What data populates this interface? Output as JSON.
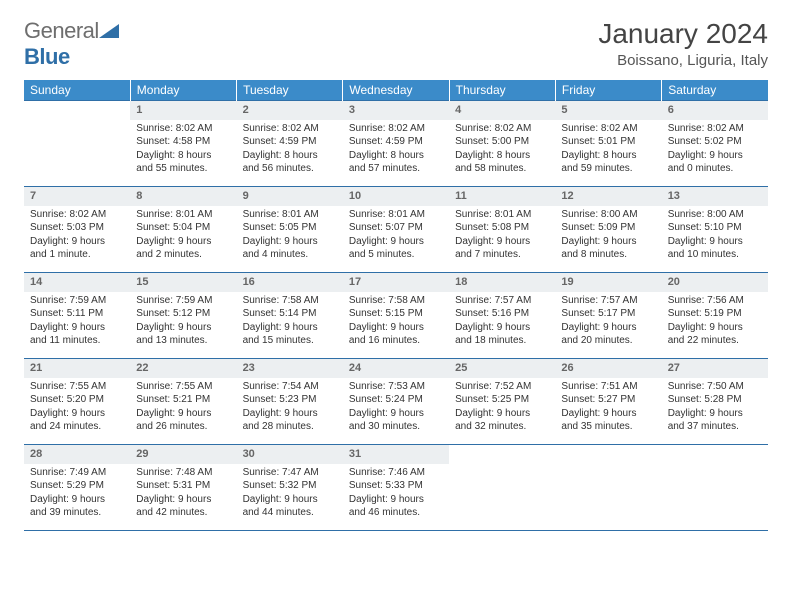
{
  "brand": {
    "word1": "General",
    "word2": "Blue"
  },
  "title": "January 2024",
  "location": "Boissano, Liguria, Italy",
  "colors": {
    "header_bg": "#3b8bc9",
    "rule": "#2f6fa7",
    "daynum_bg": "#eceff1"
  },
  "weekdays": [
    "Sunday",
    "Monday",
    "Tuesday",
    "Wednesday",
    "Thursday",
    "Friday",
    "Saturday"
  ],
  "weeks": [
    [
      null,
      {
        "n": "1",
        "sr": "Sunrise: 8:02 AM",
        "ss": "Sunset: 4:58 PM",
        "d1": "Daylight: 8 hours",
        "d2": "and 55 minutes."
      },
      {
        "n": "2",
        "sr": "Sunrise: 8:02 AM",
        "ss": "Sunset: 4:59 PM",
        "d1": "Daylight: 8 hours",
        "d2": "and 56 minutes."
      },
      {
        "n": "3",
        "sr": "Sunrise: 8:02 AM",
        "ss": "Sunset: 4:59 PM",
        "d1": "Daylight: 8 hours",
        "d2": "and 57 minutes."
      },
      {
        "n": "4",
        "sr": "Sunrise: 8:02 AM",
        "ss": "Sunset: 5:00 PM",
        "d1": "Daylight: 8 hours",
        "d2": "and 58 minutes."
      },
      {
        "n": "5",
        "sr": "Sunrise: 8:02 AM",
        "ss": "Sunset: 5:01 PM",
        "d1": "Daylight: 8 hours",
        "d2": "and 59 minutes."
      },
      {
        "n": "6",
        "sr": "Sunrise: 8:02 AM",
        "ss": "Sunset: 5:02 PM",
        "d1": "Daylight: 9 hours",
        "d2": "and 0 minutes."
      }
    ],
    [
      {
        "n": "7",
        "sr": "Sunrise: 8:02 AM",
        "ss": "Sunset: 5:03 PM",
        "d1": "Daylight: 9 hours",
        "d2": "and 1 minute."
      },
      {
        "n": "8",
        "sr": "Sunrise: 8:01 AM",
        "ss": "Sunset: 5:04 PM",
        "d1": "Daylight: 9 hours",
        "d2": "and 2 minutes."
      },
      {
        "n": "9",
        "sr": "Sunrise: 8:01 AM",
        "ss": "Sunset: 5:05 PM",
        "d1": "Daylight: 9 hours",
        "d2": "and 4 minutes."
      },
      {
        "n": "10",
        "sr": "Sunrise: 8:01 AM",
        "ss": "Sunset: 5:07 PM",
        "d1": "Daylight: 9 hours",
        "d2": "and 5 minutes."
      },
      {
        "n": "11",
        "sr": "Sunrise: 8:01 AM",
        "ss": "Sunset: 5:08 PM",
        "d1": "Daylight: 9 hours",
        "d2": "and 7 minutes."
      },
      {
        "n": "12",
        "sr": "Sunrise: 8:00 AM",
        "ss": "Sunset: 5:09 PM",
        "d1": "Daylight: 9 hours",
        "d2": "and 8 minutes."
      },
      {
        "n": "13",
        "sr": "Sunrise: 8:00 AM",
        "ss": "Sunset: 5:10 PM",
        "d1": "Daylight: 9 hours",
        "d2": "and 10 minutes."
      }
    ],
    [
      {
        "n": "14",
        "sr": "Sunrise: 7:59 AM",
        "ss": "Sunset: 5:11 PM",
        "d1": "Daylight: 9 hours",
        "d2": "and 11 minutes."
      },
      {
        "n": "15",
        "sr": "Sunrise: 7:59 AM",
        "ss": "Sunset: 5:12 PM",
        "d1": "Daylight: 9 hours",
        "d2": "and 13 minutes."
      },
      {
        "n": "16",
        "sr": "Sunrise: 7:58 AM",
        "ss": "Sunset: 5:14 PM",
        "d1": "Daylight: 9 hours",
        "d2": "and 15 minutes."
      },
      {
        "n": "17",
        "sr": "Sunrise: 7:58 AM",
        "ss": "Sunset: 5:15 PM",
        "d1": "Daylight: 9 hours",
        "d2": "and 16 minutes."
      },
      {
        "n": "18",
        "sr": "Sunrise: 7:57 AM",
        "ss": "Sunset: 5:16 PM",
        "d1": "Daylight: 9 hours",
        "d2": "and 18 minutes."
      },
      {
        "n": "19",
        "sr": "Sunrise: 7:57 AM",
        "ss": "Sunset: 5:17 PM",
        "d1": "Daylight: 9 hours",
        "d2": "and 20 minutes."
      },
      {
        "n": "20",
        "sr": "Sunrise: 7:56 AM",
        "ss": "Sunset: 5:19 PM",
        "d1": "Daylight: 9 hours",
        "d2": "and 22 minutes."
      }
    ],
    [
      {
        "n": "21",
        "sr": "Sunrise: 7:55 AM",
        "ss": "Sunset: 5:20 PM",
        "d1": "Daylight: 9 hours",
        "d2": "and 24 minutes."
      },
      {
        "n": "22",
        "sr": "Sunrise: 7:55 AM",
        "ss": "Sunset: 5:21 PM",
        "d1": "Daylight: 9 hours",
        "d2": "and 26 minutes."
      },
      {
        "n": "23",
        "sr": "Sunrise: 7:54 AM",
        "ss": "Sunset: 5:23 PM",
        "d1": "Daylight: 9 hours",
        "d2": "and 28 minutes."
      },
      {
        "n": "24",
        "sr": "Sunrise: 7:53 AM",
        "ss": "Sunset: 5:24 PM",
        "d1": "Daylight: 9 hours",
        "d2": "and 30 minutes."
      },
      {
        "n": "25",
        "sr": "Sunrise: 7:52 AM",
        "ss": "Sunset: 5:25 PM",
        "d1": "Daylight: 9 hours",
        "d2": "and 32 minutes."
      },
      {
        "n": "26",
        "sr": "Sunrise: 7:51 AM",
        "ss": "Sunset: 5:27 PM",
        "d1": "Daylight: 9 hours",
        "d2": "and 35 minutes."
      },
      {
        "n": "27",
        "sr": "Sunrise: 7:50 AM",
        "ss": "Sunset: 5:28 PM",
        "d1": "Daylight: 9 hours",
        "d2": "and 37 minutes."
      }
    ],
    [
      {
        "n": "28",
        "sr": "Sunrise: 7:49 AM",
        "ss": "Sunset: 5:29 PM",
        "d1": "Daylight: 9 hours",
        "d2": "and 39 minutes."
      },
      {
        "n": "29",
        "sr": "Sunrise: 7:48 AM",
        "ss": "Sunset: 5:31 PM",
        "d1": "Daylight: 9 hours",
        "d2": "and 42 minutes."
      },
      {
        "n": "30",
        "sr": "Sunrise: 7:47 AM",
        "ss": "Sunset: 5:32 PM",
        "d1": "Daylight: 9 hours",
        "d2": "and 44 minutes."
      },
      {
        "n": "31",
        "sr": "Sunrise: 7:46 AM",
        "ss": "Sunset: 5:33 PM",
        "d1": "Daylight: 9 hours",
        "d2": "and 46 minutes."
      },
      null,
      null,
      null
    ]
  ]
}
